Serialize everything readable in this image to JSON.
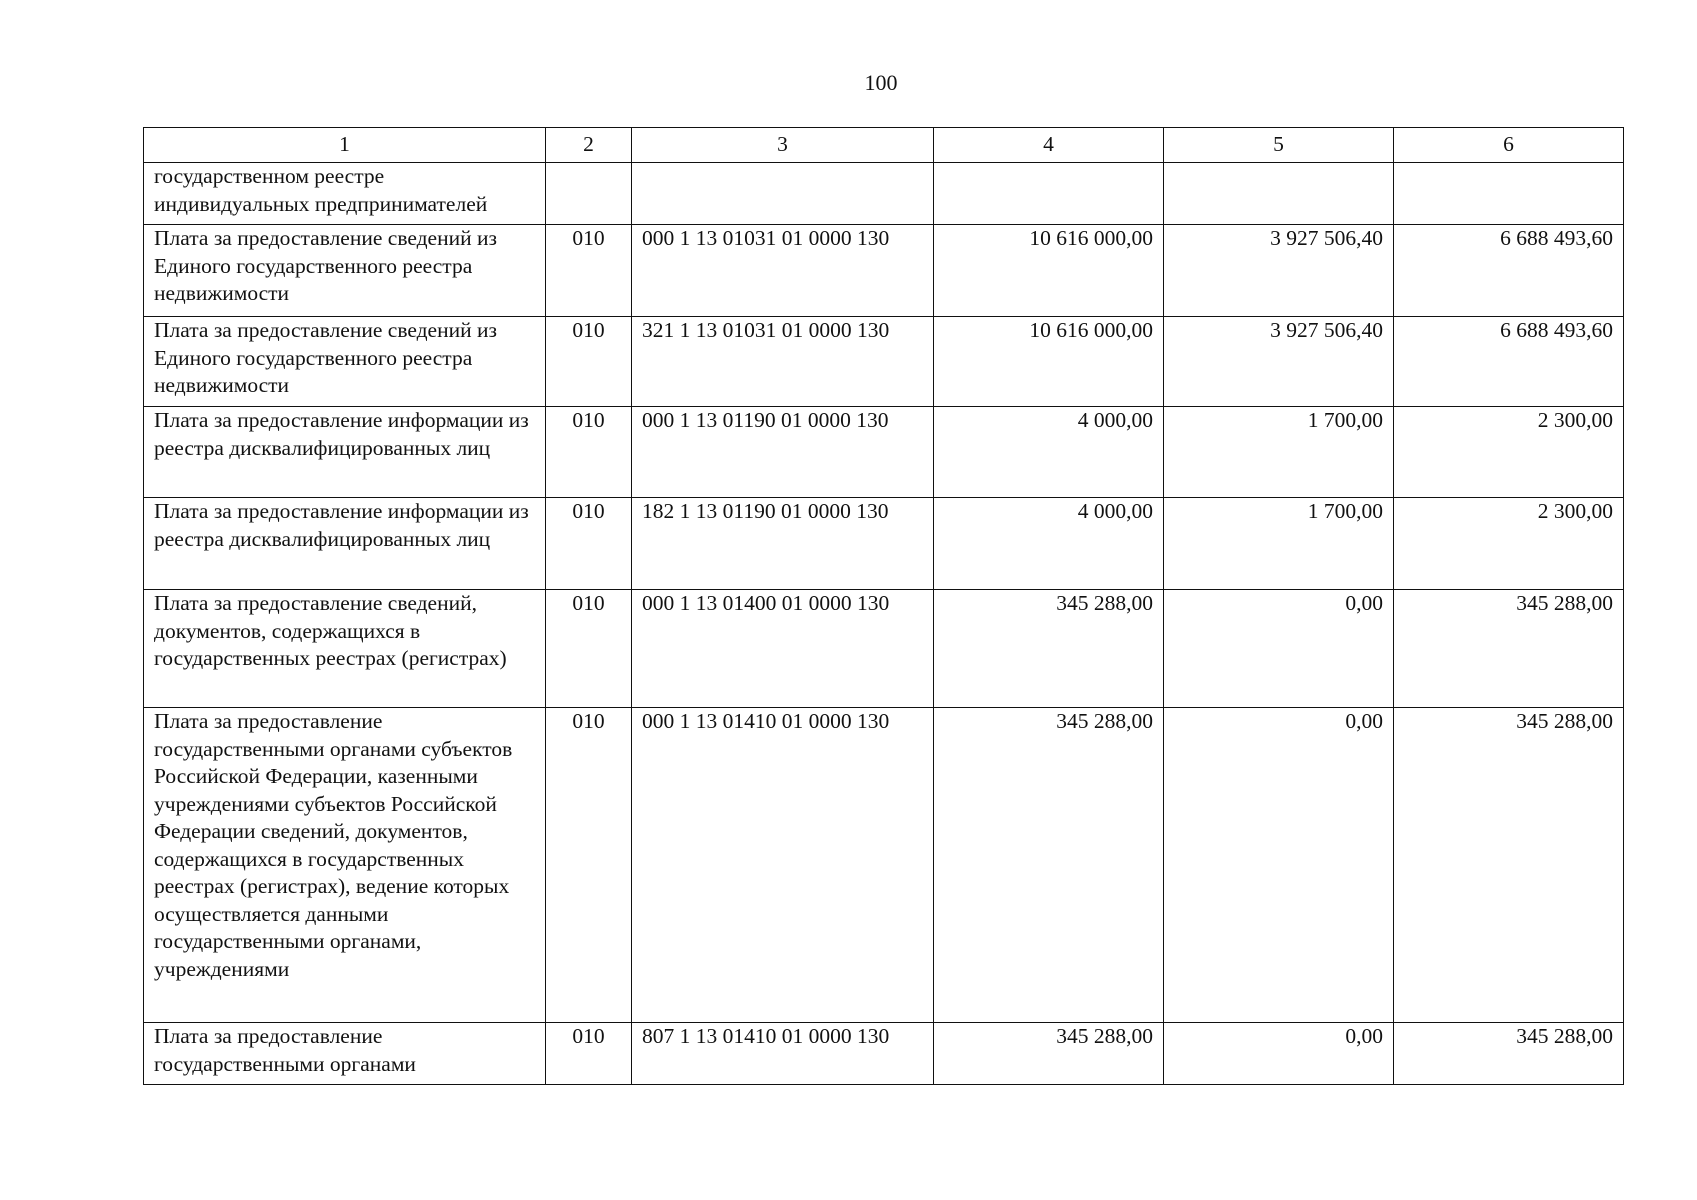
{
  "page_number": "100",
  "table": {
    "headers": [
      "1",
      "2",
      "3",
      "4",
      "5",
      "6"
    ],
    "rows": [
      {
        "name": "государственном реестре индивидуальных предпринимателей",
        "code": "",
        "kbk": "",
        "c4": "",
        "c5": "",
        "c6": ""
      },
      {
        "name": "Плата за предоставление сведений из Единого государственного реестра недвижимости",
        "code": "010",
        "kbk": "000 1 13 01031 01 0000 130",
        "c4": "10 616 000,00",
        "c5": "3 927 506,40",
        "c6": "6 688 493,60"
      },
      {
        "name": "Плата за предоставление сведений из Единого государственного реестра недвижимости",
        "code": "010",
        "kbk": "321 1 13 01031 01 0000 130",
        "c4": "10 616 000,00",
        "c5": "3 927 506,40",
        "c6": "6 688 493,60"
      },
      {
        "name": "Плата за предоставление информации из реестра дисквалифицированных лиц",
        "code": "010",
        "kbk": "000 1 13 01190 01 0000 130",
        "c4": "4 000,00",
        "c5": "1 700,00",
        "c6": "2 300,00"
      },
      {
        "name": "Плата за предоставление информации из реестра дисквалифицированных лиц",
        "code": "010",
        "kbk": "182 1 13 01190 01 0000 130",
        "c4": "4 000,00",
        "c5": "1 700,00",
        "c6": "2 300,00"
      },
      {
        "name": "Плата за предоставление сведений, документов, содержащихся в государственных реестрах (регистрах)",
        "code": "010",
        "kbk": "000 1 13 01400 01 0000 130",
        "c4": "345 288,00",
        "c5": "0,00",
        "c6": "345 288,00"
      },
      {
        "name": "Плата за предоставление государственными органами субъектов Российской Федерации, казенными учреждениями субъектов Российской Федерации сведений, документов, содержащихся в государственных реестрах (регистрах), ведение которых осуществляется данными государственными органами, учреждениями",
        "code": "010",
        "kbk": "000 1 13 01410 01 0000 130",
        "c4": "345 288,00",
        "c5": "0,00",
        "c6": "345 288,00"
      },
      {
        "name": "Плата за предоставление государственными органами",
        "code": "010",
        "kbk": "807 1 13 01410 01 0000 130",
        "c4": "345 288,00",
        "c5": "0,00",
        "c6": "345 288,00"
      }
    ]
  }
}
